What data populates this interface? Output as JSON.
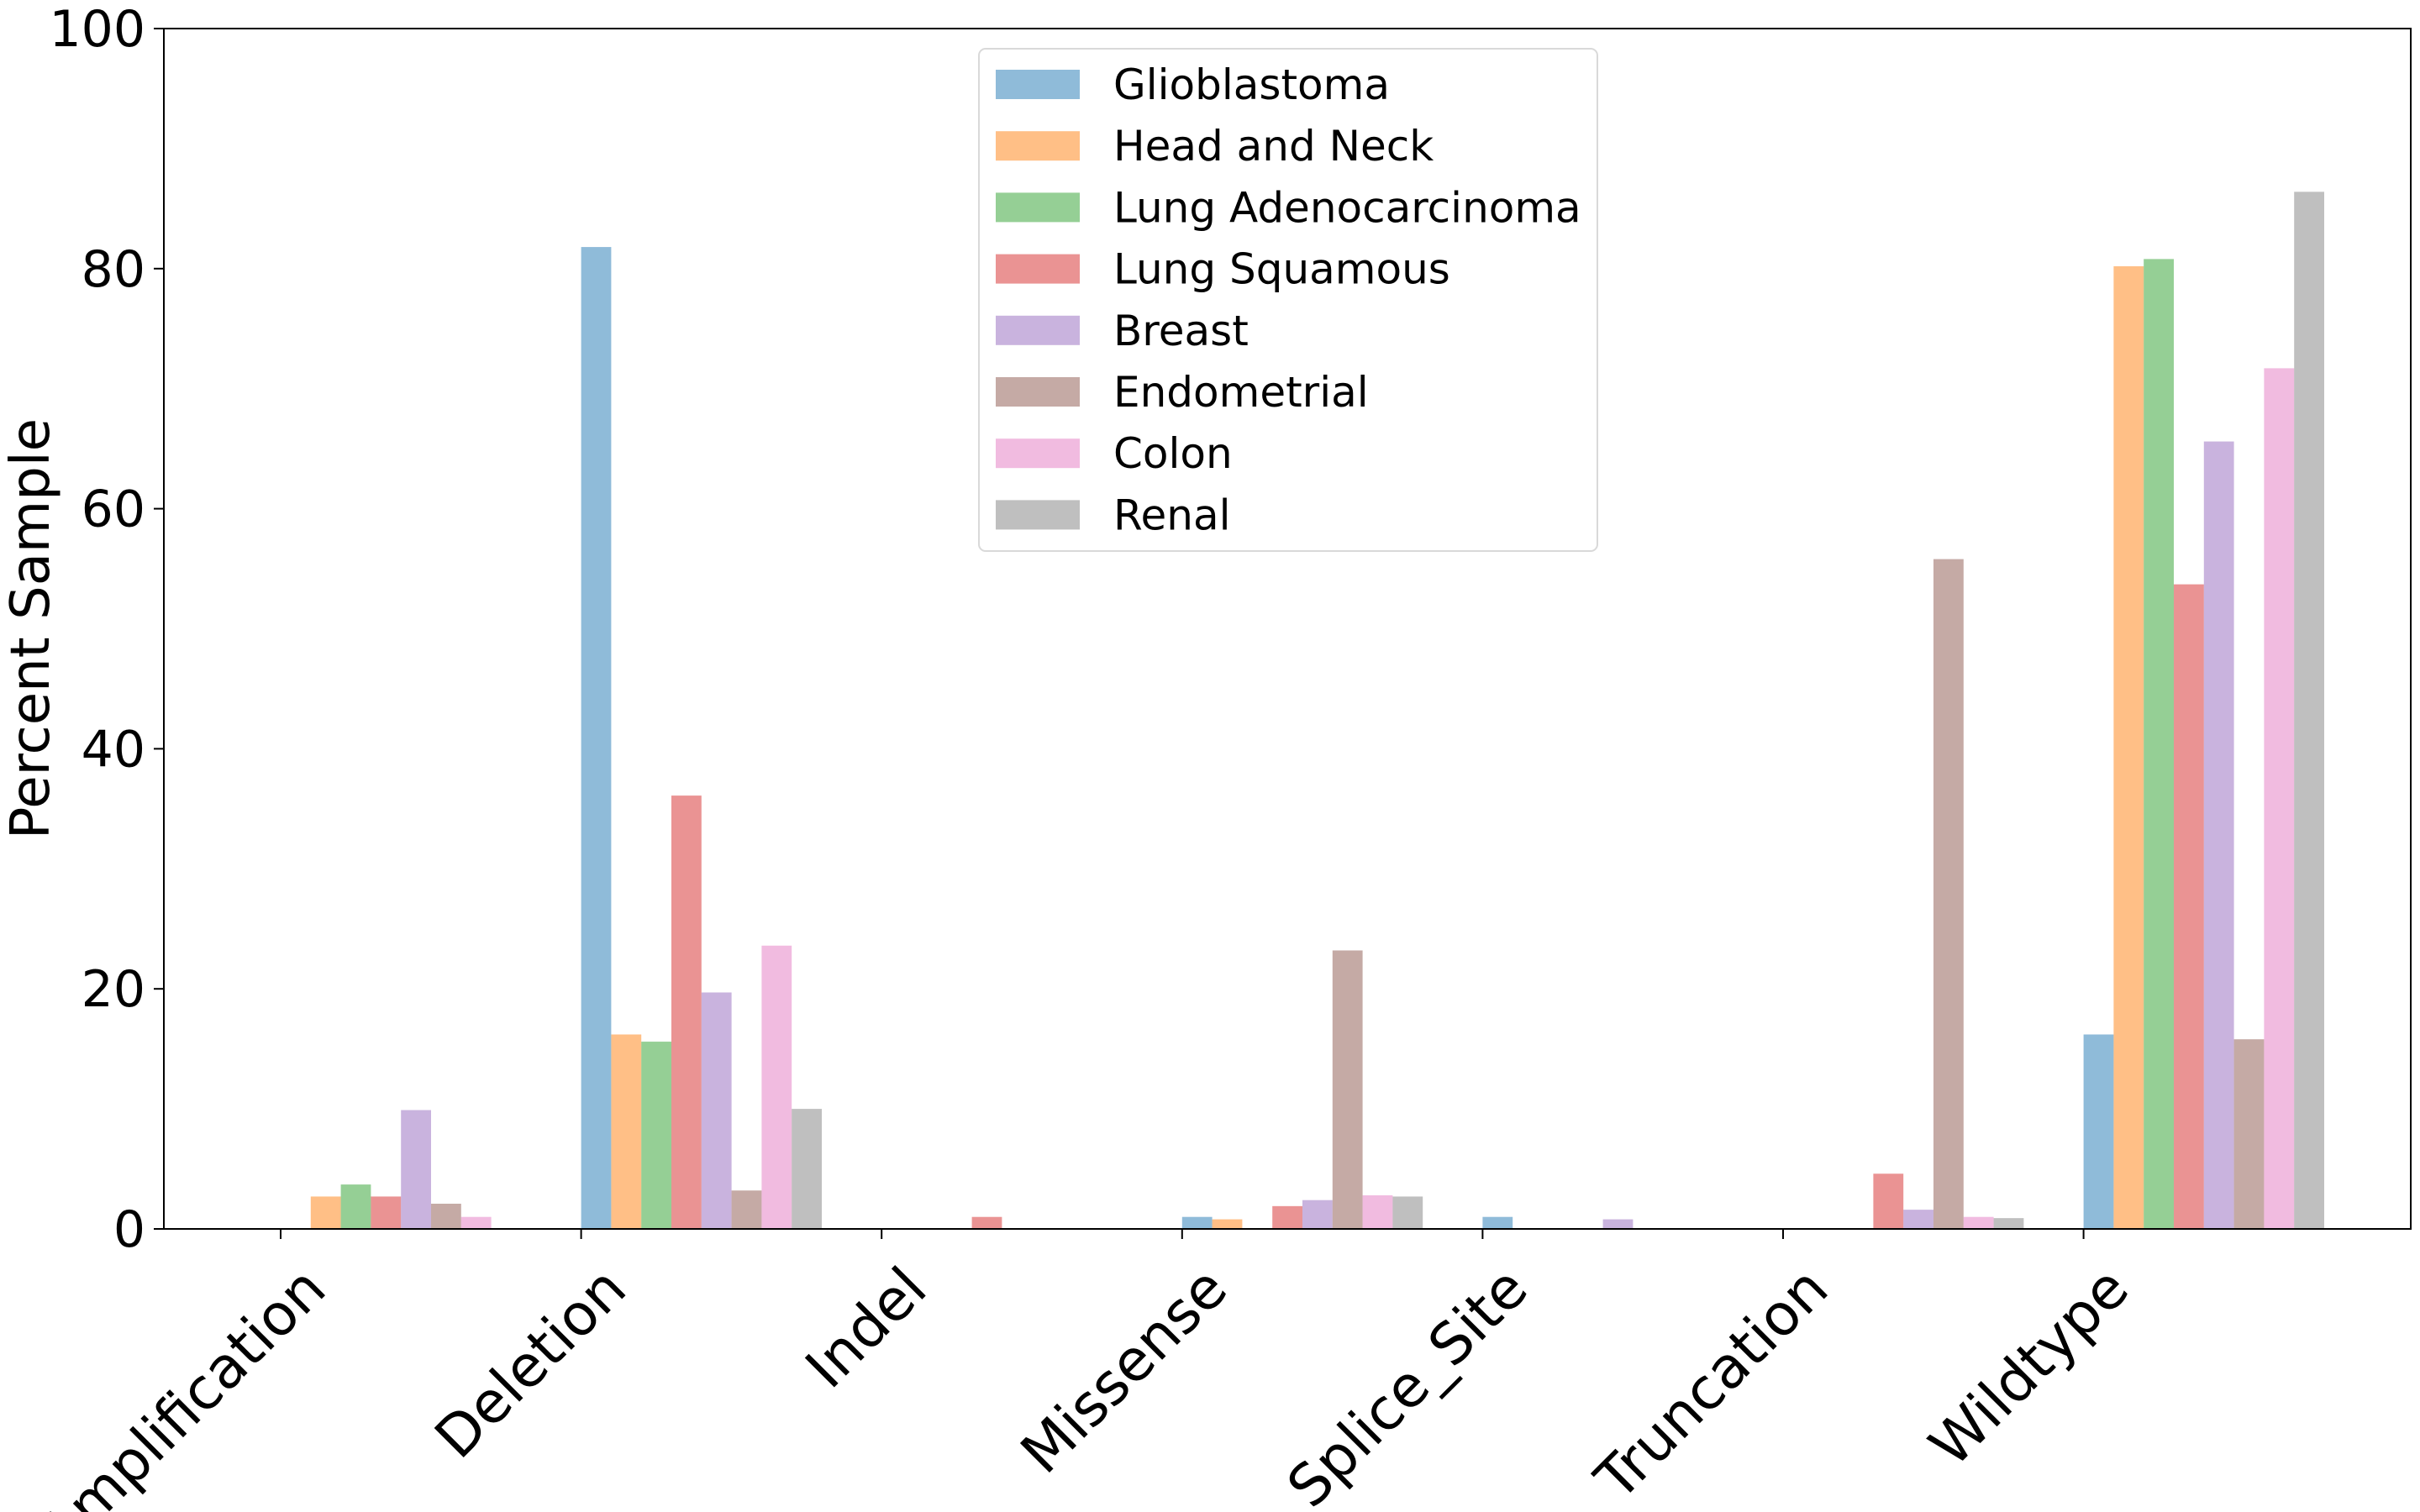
{
  "chart_data": {
    "type": "bar",
    "title": "",
    "xlabel": "",
    "ylabel": "Percent Sample",
    "ylim": [
      0,
      100
    ],
    "yticks": [
      "0",
      "20",
      "40",
      "60",
      "80",
      "100"
    ],
    "categories": [
      "Amplification",
      "Deletion",
      "Indel",
      "Missense",
      "Splice_Site",
      "Truncation",
      "Wildtype"
    ],
    "legend_position": "top-center",
    "grid": false,
    "bar_opacity": 0.5,
    "series": [
      {
        "name": "Glioblastoma",
        "color": "#1f77b4",
        "values": [
          0,
          81.8,
          0,
          1.0,
          1.0,
          0,
          16.2
        ]
      },
      {
        "name": "Head and Neck",
        "color": "#ff7f0e",
        "values": [
          2.7,
          16.2,
          0,
          0.8,
          0,
          0,
          80.2
        ]
      },
      {
        "name": "Lung Adenocarcinoma",
        "color": "#2ca02c",
        "values": [
          3.7,
          15.6,
          0,
          0,
          0,
          0,
          80.8
        ]
      },
      {
        "name": "Lung Squamous",
        "color": "#d62728",
        "values": [
          2.7,
          36.1,
          1.0,
          1.9,
          0,
          4.6,
          53.7
        ]
      },
      {
        "name": "Breast",
        "color": "#9467bd",
        "values": [
          9.9,
          19.7,
          0,
          2.4,
          0.8,
          1.6,
          65.6
        ]
      },
      {
        "name": "Endometrial",
        "color": "#8c564b",
        "values": [
          2.1,
          3.2,
          0,
          23.2,
          0,
          55.8,
          15.8
        ]
      },
      {
        "name": "Colon",
        "color": "#e377c2",
        "values": [
          1.0,
          23.6,
          0,
          2.8,
          0,
          1.0,
          71.7
        ]
      },
      {
        "name": "Renal",
        "color": "#7f7f7f",
        "values": [
          0,
          10.0,
          0,
          2.7,
          0,
          0.9,
          86.4
        ]
      }
    ]
  }
}
